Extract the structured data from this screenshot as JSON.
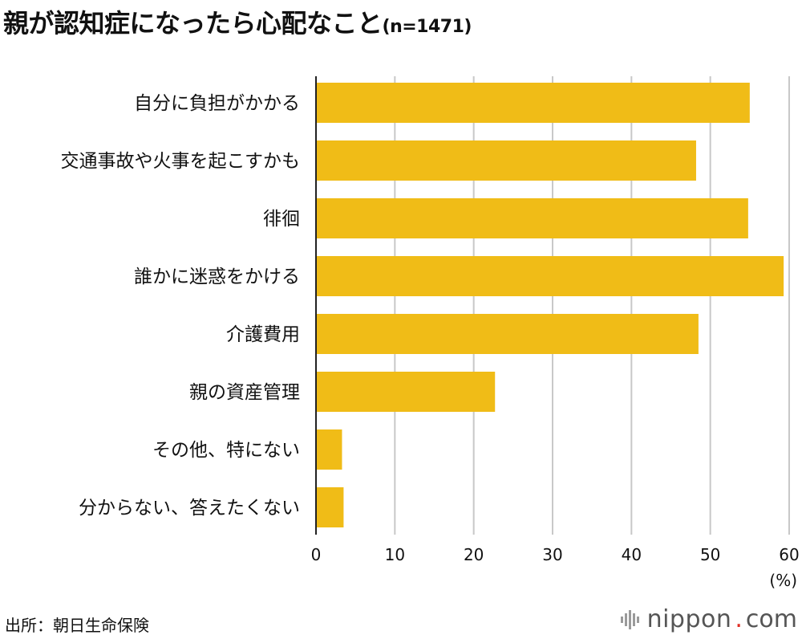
{
  "title": "親が認知症になったら心配なこと",
  "title_n": "(n=1471)",
  "source": "出所：朝日生命保険",
  "brand": {
    "name": "nippon",
    "dot": ".",
    "tld": "com"
  },
  "colors": {
    "bar": "#f0bc17",
    "grid": "#c8c8c8",
    "axis": "#222222"
  },
  "chart_data": {
    "type": "bar",
    "orientation": "horizontal",
    "title": "親が認知症になったら心配なこと(n=1471)",
    "categories": [
      "自分に負担がかかる",
      "交通事故や火事を起こすかも",
      "徘徊",
      "誰かに迷惑をかける",
      "介護費用",
      "親の資産管理",
      "その他、特にない",
      "分からない、答えたくない"
    ],
    "values": [
      55.0,
      48.2,
      54.8,
      59.3,
      48.5,
      22.7,
      3.3,
      3.5
    ],
    "xlim": [
      0,
      60
    ],
    "xticks": [
      0,
      10,
      20,
      30,
      40,
      50,
      60
    ],
    "xunit": "(%)",
    "grid": true
  }
}
